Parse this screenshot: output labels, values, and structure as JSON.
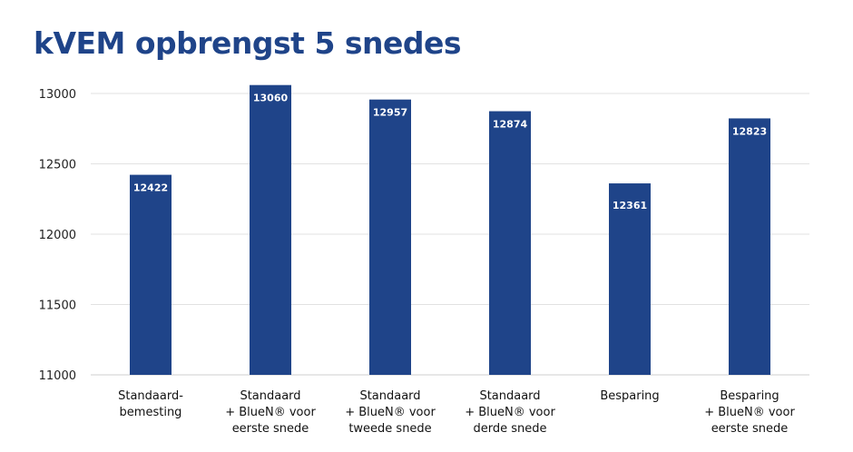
{
  "title": "kVEM opbrengst 5 snedes",
  "chart_data": {
    "type": "bar",
    "title": "kVEM opbrengst 5 snedes",
    "categories": [
      [
        "Standaard-",
        "bemesting"
      ],
      [
        "Standaard",
        "+ BlueN® voor",
        "eerste snede"
      ],
      [
        "Standaard",
        "+ BlueN® voor",
        "tweede snede"
      ],
      [
        "Standaard",
        "+ BlueN® voor",
        "derde snede"
      ],
      [
        "Besparing"
      ],
      [
        "Besparing",
        "+ BlueN® voor",
        "eerste snede"
      ]
    ],
    "values": [
      12422,
      13060,
      12957,
      12874,
      12361,
      12823
    ],
    "data_labels": [
      "12422",
      "13060",
      "12957",
      "12874",
      "12361",
      "12823"
    ],
    "yticks": [
      "11000",
      "11500",
      "12000",
      "12500",
      "13000"
    ],
    "ylim": [
      11000,
      13000
    ],
    "xlabel": "",
    "ylabel": "",
    "grid": true,
    "bar_color": "#1f4489",
    "grid_color": "#e2e2e2"
  }
}
